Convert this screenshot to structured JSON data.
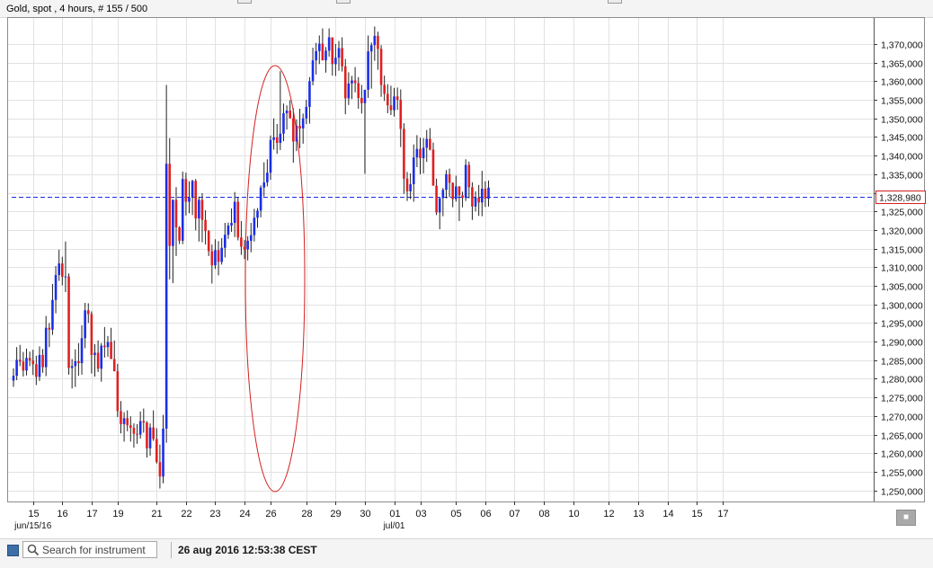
{
  "header": {
    "title": "Gold, spot , 4 hours, # 155 / 500"
  },
  "search": {
    "placeholder": "Search for instrument",
    "value": ""
  },
  "status": {
    "timestamp": "26 aug 2016 12:53:38 CEST"
  },
  "colors": {
    "up": "#1b2ee6",
    "down": "#e02020",
    "grid": "#e2e2e2",
    "price_line": "#1b2ee6",
    "annotation": "#d42020"
  },
  "icons": {
    "search": "magnifier-icon",
    "corner": "window-button-icon",
    "square": "square-button-icon"
  },
  "chart_data": {
    "type": "candlestick",
    "title": "Gold, spot , 4 hours, # 155 / 500",
    "ylim": [
      1.247,
      1.377
    ],
    "y_ticks": [
      "1,250,000",
      "1,255,000",
      "1,260,000",
      "1,265,000",
      "1,270,000",
      "1,275,000",
      "1,280,000",
      "1,285,000",
      "1,290,000",
      "1,295,000",
      "1,300,000",
      "1,305,000",
      "1,310,000",
      "1,315,000",
      "1,320,000",
      "1,325,000",
      "1,330,000",
      "1,335,000",
      "1,340,000",
      "1,345,000",
      "1,350,000",
      "1,355,000",
      "1,360,000",
      "1,365,000",
      "1,370,000"
    ],
    "x_ticks": [
      {
        "label": "15",
        "i": 6
      },
      {
        "label": "16",
        "i": 15
      },
      {
        "label": "17",
        "i": 24
      },
      {
        "label": "19",
        "i": 32
      },
      {
        "label": "21",
        "i": 44
      },
      {
        "label": "22",
        "i": 53
      },
      {
        "label": "23",
        "i": 62
      },
      {
        "label": "24",
        "i": 71
      },
      {
        "label": "26",
        "i": 79
      },
      {
        "label": "28",
        "i": 90
      },
      {
        "label": "29",
        "i": 99
      },
      {
        "label": "30",
        "i": 108
      },
      {
        "label": "01",
        "i": 117
      },
      {
        "label": "03",
        "i": 125
      },
      {
        "label": "05",
        "i": 136
      },
      {
        "label": "06",
        "i": 145
      },
      {
        "label": "07",
        "i": 154
      },
      {
        "label": "08",
        "i": 163
      },
      {
        "label": "10",
        "i": 172
      },
      {
        "label": "12",
        "i": 183
      },
      {
        "label": "13",
        "i": 192
      },
      {
        "label": "14",
        "i": 201
      },
      {
        "label": "15",
        "i": 210
      },
      {
        "label": "17",
        "i": 218
      }
    ],
    "sub_labels": [
      {
        "label": "jun/15/16",
        "i": 6
      },
      {
        "label": "jul/01",
        "i": 117
      }
    ],
    "current_price": 1.32898,
    "current_price_label": "1,328,980",
    "candles": [
      [
        1.2795,
        1.2828,
        1.2778,
        1.2808
      ],
      [
        1.2808,
        1.2885,
        1.2796,
        1.2851
      ],
      [
        1.2851,
        1.2891,
        1.2834,
        1.2846
      ],
      [
        1.2846,
        1.2872,
        1.2806,
        1.2822
      ],
      [
        1.2822,
        1.2881,
        1.2809,
        1.2856
      ],
      [
        1.2856,
        1.2873,
        1.2834,
        1.2849
      ],
      [
        1.2849,
        1.2878,
        1.281,
        1.2839
      ],
      [
        1.2839,
        1.2862,
        1.2783,
        1.2805
      ],
      [
        1.2805,
        1.2887,
        1.2794,
        1.2864
      ],
      [
        1.2864,
        1.288,
        1.2816,
        1.2831
      ],
      [
        1.2831,
        1.2969,
        1.2807,
        1.2937
      ],
      [
        1.2937,
        1.295,
        1.2885,
        1.2932
      ],
      [
        1.2932,
        1.3055,
        1.2918,
        1.3012
      ],
      [
        1.3012,
        1.3103,
        1.2976,
        1.3079
      ],
      [
        1.3079,
        1.3147,
        1.3063,
        1.311
      ],
      [
        1.311,
        1.3128,
        1.3051,
        1.3074
      ],
      [
        1.3074,
        1.3169,
        1.3033,
        1.3075
      ],
      [
        1.3075,
        1.3083,
        1.2811,
        1.2829
      ],
      [
        1.2829,
        1.2853,
        1.2774,
        1.2834
      ],
      [
        1.2834,
        1.2879,
        1.2778,
        1.2847
      ],
      [
        1.2847,
        1.2896,
        1.2808,
        1.2842
      ],
      [
        1.2842,
        1.2944,
        1.2811,
        1.2909
      ],
      [
        1.2909,
        1.3004,
        1.2882,
        1.2984
      ],
      [
        1.2984,
        1.3003,
        1.295,
        1.2974
      ],
      [
        1.2974,
        1.2981,
        1.2814,
        1.2864
      ],
      [
        1.2864,
        1.2893,
        1.2806,
        1.287
      ],
      [
        1.287,
        1.2903,
        1.2818,
        1.2827
      ],
      [
        1.2827,
        1.2896,
        1.2792,
        1.2889
      ],
      [
        1.2889,
        1.2939,
        1.2857,
        1.2885
      ],
      [
        1.2885,
        1.2915,
        1.2859,
        1.2899
      ],
      [
        1.2899,
        1.2937,
        1.2853,
        1.2853
      ],
      [
        1.2853,
        1.2903,
        1.2831,
        1.282
      ],
      [
        1.282,
        1.284,
        1.2697,
        1.2713
      ],
      [
        1.2713,
        1.274,
        1.2653,
        1.2678
      ],
      [
        1.2678,
        1.271,
        1.2631,
        1.2694
      ],
      [
        1.2694,
        1.2715,
        1.2659,
        1.2675
      ],
      [
        1.2675,
        1.2699,
        1.2631,
        1.2668
      ],
      [
        1.2668,
        1.268,
        1.2615,
        1.2652
      ],
      [
        1.2652,
        1.2678,
        1.2625,
        1.265
      ],
      [
        1.265,
        1.2712,
        1.2639,
        1.2686
      ],
      [
        1.2686,
        1.272,
        1.2655,
        1.2682
      ],
      [
        1.2682,
        1.2686,
        1.2588,
        1.2613
      ],
      [
        1.2613,
        1.268,
        1.2593,
        1.2669
      ],
      [
        1.2669,
        1.2715,
        1.2633,
        1.2638
      ],
      [
        1.2638,
        1.2667,
        1.2572,
        1.2576
      ],
      [
        1.2576,
        1.2623,
        1.2505,
        1.2537
      ],
      [
        1.2537,
        1.2703,
        1.2519,
        1.2666
      ],
      [
        1.2666,
        1.359,
        1.2628,
        1.3378
      ],
      [
        1.3378,
        1.3447,
        1.3067,
        1.3157
      ],
      [
        1.3157,
        1.3282,
        1.3057,
        1.3281
      ],
      [
        1.3281,
        1.3315,
        1.313,
        1.3207
      ],
      [
        1.3207,
        1.321,
        1.3162,
        1.3171
      ],
      [
        1.3171,
        1.3357,
        1.3162,
        1.3337
      ],
      [
        1.3337,
        1.3354,
        1.3239,
        1.3276
      ],
      [
        1.3276,
        1.3331,
        1.3245,
        1.3288
      ],
      [
        1.3288,
        1.3335,
        1.324,
        1.3332
      ],
      [
        1.3332,
        1.3337,
        1.3199,
        1.3231
      ],
      [
        1.3231,
        1.329,
        1.3169,
        1.3281
      ],
      [
        1.3281,
        1.3299,
        1.3167,
        1.3227
      ],
      [
        1.3227,
        1.3253,
        1.3161,
        1.3197
      ],
      [
        1.3197,
        1.32,
        1.313,
        1.3143
      ],
      [
        1.3143,
        1.3161,
        1.3056,
        1.3105
      ],
      [
        1.3105,
        1.3175,
        1.3095,
        1.3146
      ],
      [
        1.3146,
        1.317,
        1.3078,
        1.3114
      ],
      [
        1.3114,
        1.3178,
        1.3107,
        1.3152
      ],
      [
        1.3152,
        1.3219,
        1.3126,
        1.3187
      ],
      [
        1.3187,
        1.322,
        1.3176,
        1.3212
      ],
      [
        1.3212,
        1.3258,
        1.3195,
        1.3219
      ],
      [
        1.3219,
        1.3302,
        1.3181,
        1.3276
      ],
      [
        1.3276,
        1.3289,
        1.3172,
        1.318
      ],
      [
        1.318,
        1.3224,
        1.3133,
        1.3155
      ],
      [
        1.3155,
        1.3173,
        1.3122,
        1.3148
      ],
      [
        1.3148,
        1.3183,
        1.3118,
        1.3171
      ],
      [
        1.3171,
        1.3219,
        1.314,
        1.3186
      ],
      [
        1.3186,
        1.3257,
        1.3169,
        1.3233
      ],
      [
        1.3233,
        1.3259,
        1.3206,
        1.3252
      ],
      [
        1.3252,
        1.332,
        1.3234,
        1.3314
      ],
      [
        1.3314,
        1.3382,
        1.329,
        1.3328
      ],
      [
        1.3328,
        1.339,
        1.3317,
        1.3354
      ],
      [
        1.3354,
        1.3454,
        1.3335,
        1.3442
      ],
      [
        1.3442,
        1.35,
        1.3416,
        1.3449
      ],
      [
        1.3449,
        1.3485,
        1.3405,
        1.3434
      ],
      [
        1.3434,
        1.3627,
        1.3415,
        1.3459
      ],
      [
        1.3459,
        1.354,
        1.3439,
        1.3514
      ],
      [
        1.3514,
        1.3535,
        1.347,
        1.3521
      ],
      [
        1.3521,
        1.3549,
        1.3505,
        1.35
      ],
      [
        1.35,
        1.3528,
        1.3381,
        1.3438
      ],
      [
        1.3438,
        1.3497,
        1.3412,
        1.348
      ],
      [
        1.348,
        1.3526,
        1.342,
        1.3473
      ],
      [
        1.3473,
        1.3513,
        1.3432,
        1.35
      ],
      [
        1.35,
        1.355,
        1.3485,
        1.3531
      ],
      [
        1.3531,
        1.3611,
        1.3486,
        1.36
      ],
      [
        1.36,
        1.369,
        1.3589,
        1.3656
      ],
      [
        1.3656,
        1.3703,
        1.3618,
        1.3681
      ],
      [
        1.3681,
        1.3723,
        1.3646,
        1.3701
      ],
      [
        1.3701,
        1.3742,
        1.3656,
        1.3656
      ],
      [
        1.3656,
        1.3692,
        1.3623,
        1.3682
      ],
      [
        1.3682,
        1.3742,
        1.3666,
        1.3718
      ],
      [
        1.3718,
        1.3708,
        1.3615,
        1.3646
      ],
      [
        1.3646,
        1.37,
        1.3614,
        1.3663
      ],
      [
        1.3663,
        1.3708,
        1.3628,
        1.3689
      ],
      [
        1.3689,
        1.3718,
        1.3626,
        1.364
      ],
      [
        1.364,
        1.366,
        1.3511,
        1.3554
      ],
      [
        1.3554,
        1.3624,
        1.3536,
        1.3594
      ],
      [
        1.3594,
        1.3614,
        1.3552,
        1.3602
      ],
      [
        1.3602,
        1.3638,
        1.357,
        1.3595
      ],
      [
        1.3595,
        1.3611,
        1.3526,
        1.3555
      ],
      [
        1.3555,
        1.359,
        1.3513,
        1.3541
      ],
      [
        1.3541,
        1.3574,
        1.3351,
        1.3577
      ],
      [
        1.3577,
        1.3723,
        1.3555,
        1.368
      ],
      [
        1.368,
        1.3704,
        1.358,
        1.3697
      ],
      [
        1.3697,
        1.3747,
        1.3655,
        1.3722
      ],
      [
        1.3722,
        1.3733,
        1.3631,
        1.3687
      ],
      [
        1.3687,
        1.3697,
        1.3558,
        1.359
      ],
      [
        1.359,
        1.3615,
        1.3547,
        1.3566
      ],
      [
        1.3566,
        1.3592,
        1.3514,
        1.3535
      ],
      [
        1.3535,
        1.3588,
        1.3509,
        1.3522
      ],
      [
        1.3522,
        1.3582,
        1.3505,
        1.3559
      ],
      [
        1.3559,
        1.3583,
        1.3523,
        1.355
      ],
      [
        1.355,
        1.3578,
        1.3423,
        1.3472
      ],
      [
        1.3472,
        1.3487,
        1.3297,
        1.3338
      ],
      [
        1.3338,
        1.3356,
        1.3278,
        1.3304
      ],
      [
        1.3304,
        1.3352,
        1.3283,
        1.3323
      ],
      [
        1.3323,
        1.343,
        1.3276,
        1.3395
      ],
      [
        1.3395,
        1.3455,
        1.3369,
        1.3418
      ],
      [
        1.3418,
        1.3448,
        1.335,
        1.3393
      ],
      [
        1.3393,
        1.3447,
        1.3352,
        1.3421
      ],
      [
        1.3421,
        1.3469,
        1.3383,
        1.3445
      ],
      [
        1.3445,
        1.3474,
        1.3414,
        1.3416
      ],
      [
        1.3416,
        1.3435,
        1.333,
        1.3319
      ],
      [
        1.3319,
        1.3338,
        1.324,
        1.3247
      ],
      [
        1.3247,
        1.328,
        1.3202,
        1.3286
      ],
      [
        1.3286,
        1.3313,
        1.3237,
        1.3308
      ],
      [
        1.3308,
        1.3361,
        1.3285,
        1.335
      ],
      [
        1.335,
        1.3365,
        1.3288,
        1.3327
      ],
      [
        1.3327,
        1.3328,
        1.3261,
        1.3283
      ],
      [
        1.3283,
        1.3346,
        1.3276,
        1.3317
      ],
      [
        1.3317,
        1.3318,
        1.3224,
        1.3293
      ],
      [
        1.3293,
        1.3303,
        1.3261,
        1.3286
      ],
      [
        1.3286,
        1.339,
        1.3278,
        1.3375
      ],
      [
        1.3375,
        1.3384,
        1.3285,
        1.3315
      ],
      [
        1.3315,
        1.3328,
        1.3227,
        1.3263
      ],
      [
        1.3263,
        1.3304,
        1.325,
        1.3287
      ],
      [
        1.3287,
        1.3321,
        1.3238,
        1.3274
      ],
      [
        1.3274,
        1.3359,
        1.3237,
        1.3311
      ],
      [
        1.3311,
        1.3331,
        1.3262,
        1.3284
      ],
      [
        1.3284,
        1.3333,
        1.3263,
        1.3314
      ]
    ]
  }
}
